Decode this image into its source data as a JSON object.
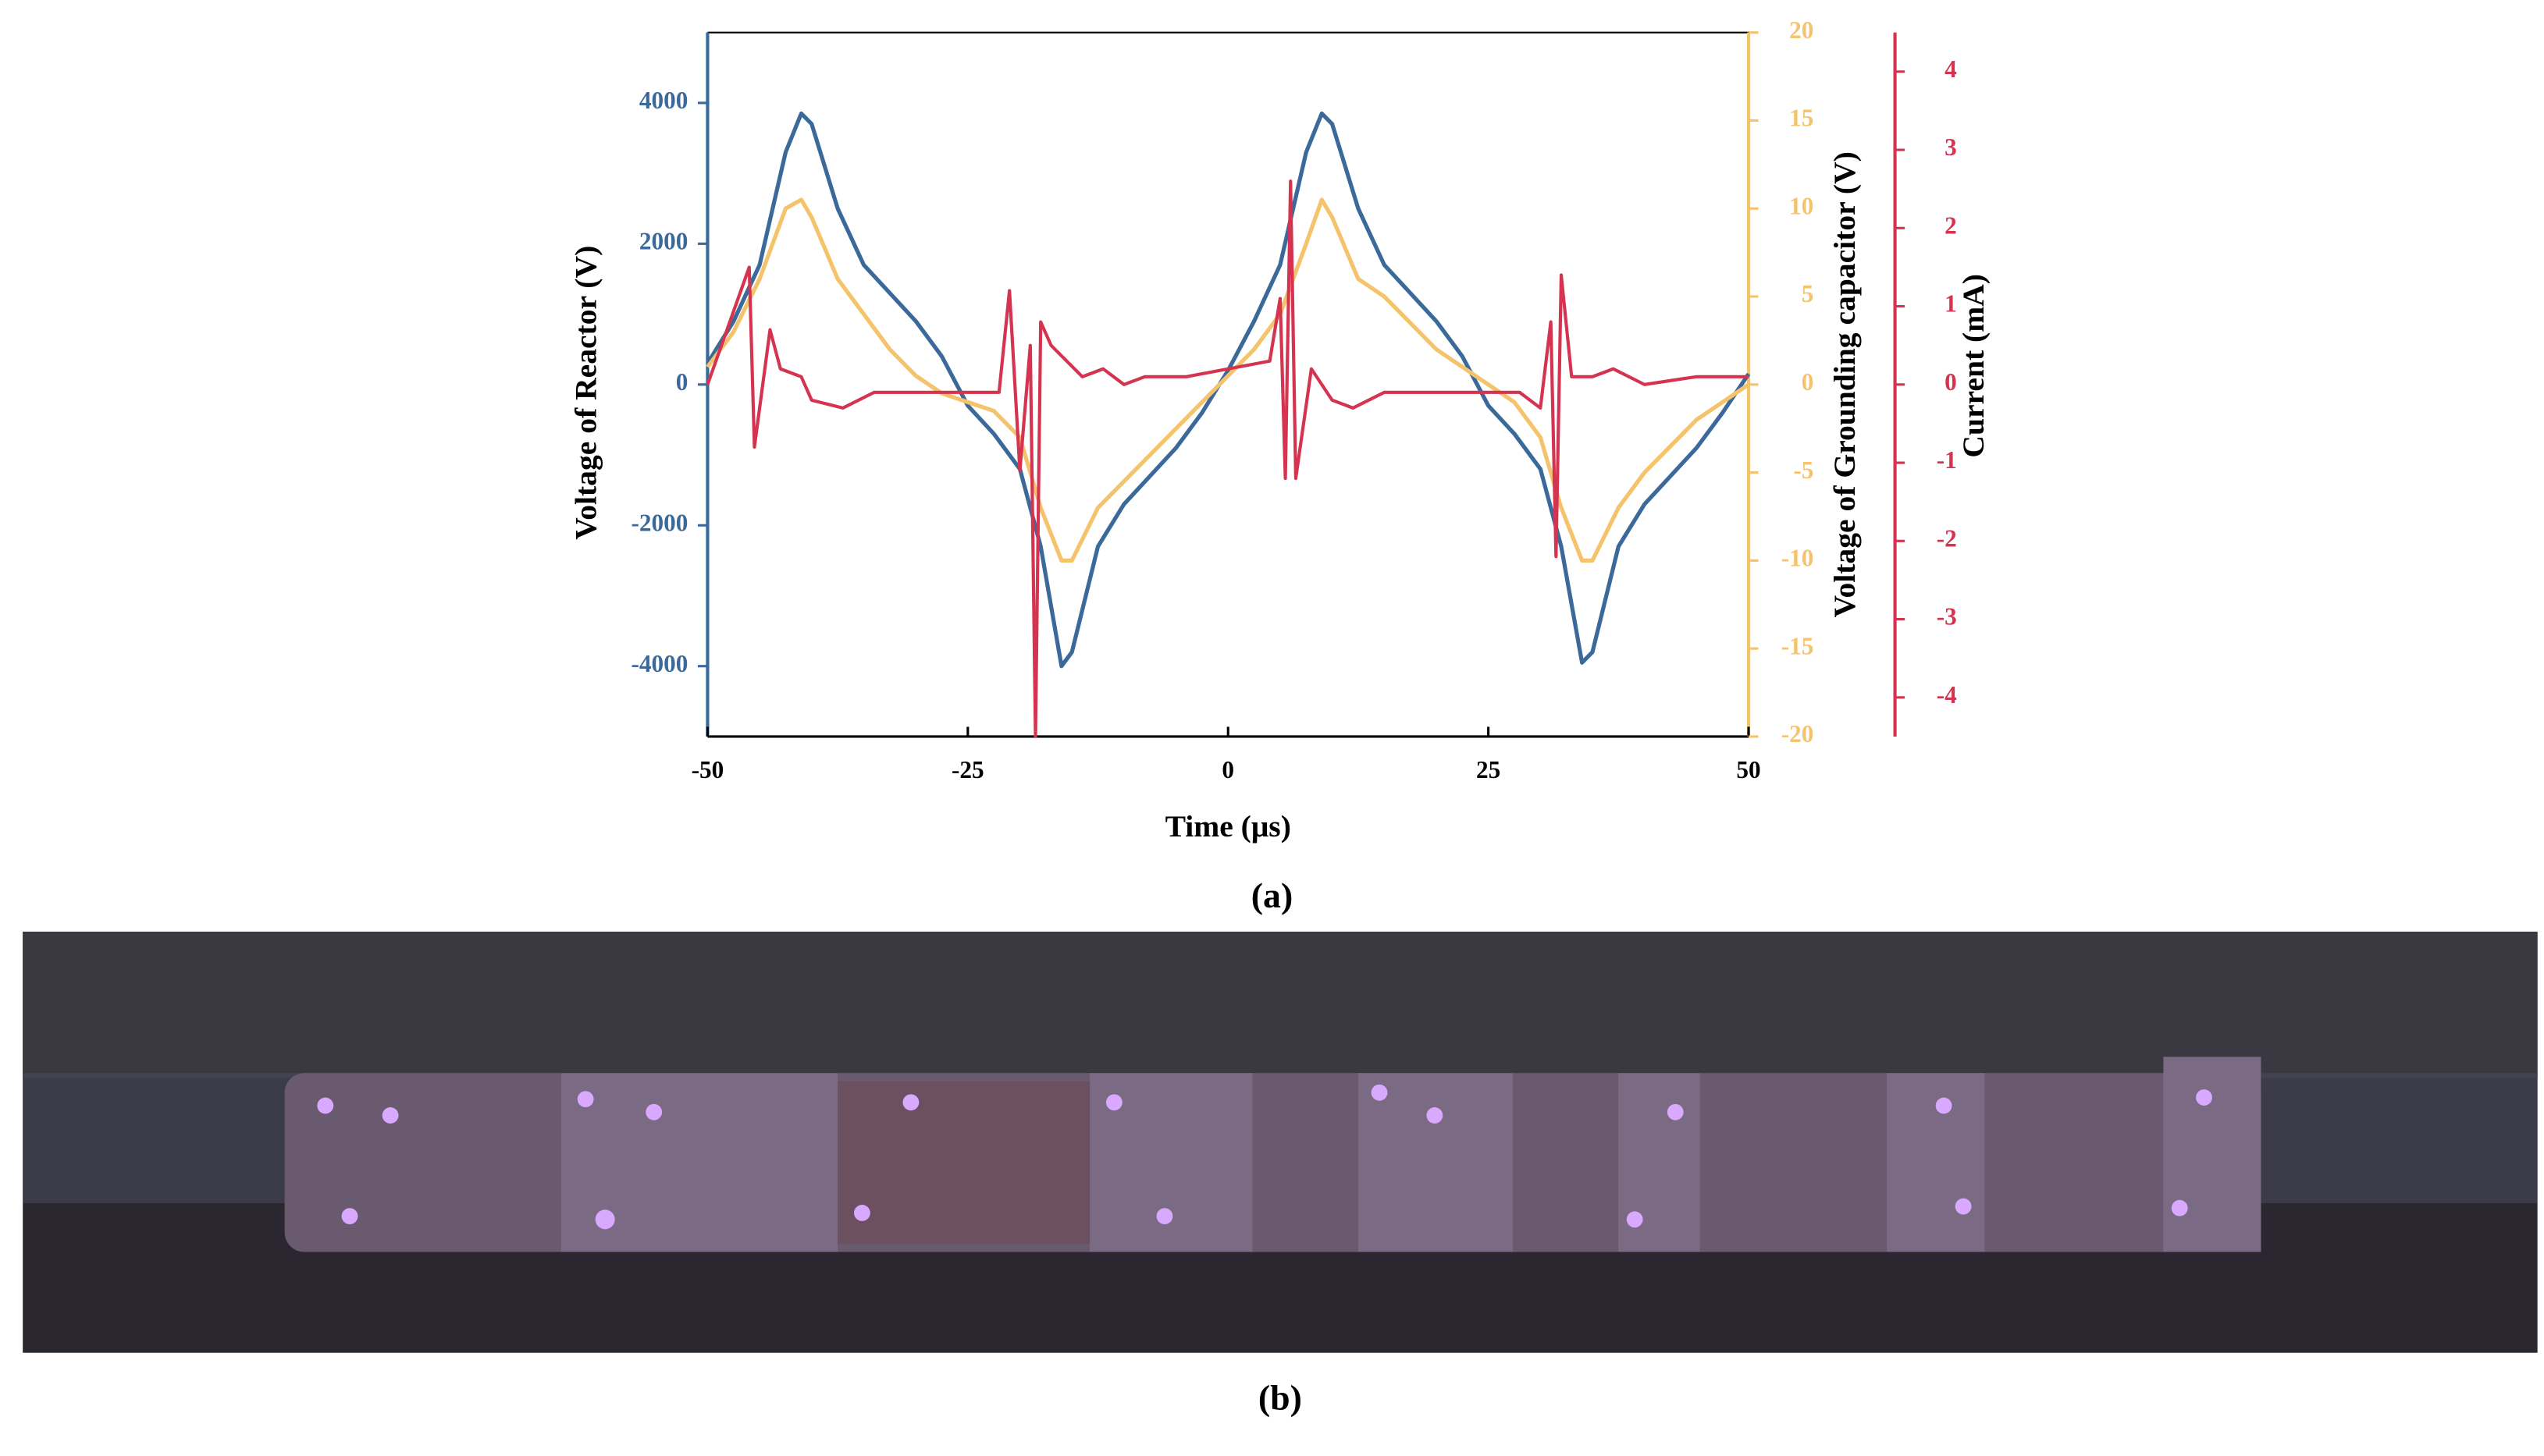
{
  "chart_data": {
    "type": "line",
    "x_label": "Time (μs)",
    "y_label": "Voltage of Reactor (V)",
    "y2_label": "Voltage of Grounding capacitor (V)",
    "y3_label": "Current (mA)",
    "xlim": [
      -50,
      50
    ],
    "xticks": [
      -50,
      -25,
      0,
      25,
      50
    ],
    "ylim": [
      -5000,
      5000
    ],
    "yticks": [
      -4000,
      -2000,
      0,
      2000,
      4000
    ],
    "y2lim": [
      -20,
      20
    ],
    "y2ticks": [
      -20,
      -15,
      -10,
      -5,
      0,
      5,
      10,
      15,
      20
    ],
    "y3lim": [
      -4.5,
      4.5
    ],
    "y3ticks": [
      -4,
      -3,
      -2,
      -1,
      0,
      1,
      2,
      3,
      4
    ],
    "axis_colors": {
      "y": "#3b6a9a",
      "y2": "#f5c36b",
      "y3": "#d4344f"
    },
    "series": [
      {
        "name": "Voltage of Reactor",
        "color": "#3b6a9a",
        "axis": "y",
        "x": [
          -50,
          -47.5,
          -45,
          -42.5,
          -41,
          -40,
          -37.5,
          -35,
          -32.5,
          -30,
          -27.5,
          -25,
          -22.5,
          -20,
          -18,
          -16,
          -15,
          -12.5,
          -10,
          -7.5,
          -5,
          -2.5,
          0,
          2.5,
          5,
          7.5,
          9,
          10,
          12.5,
          15,
          17.5,
          20,
          22.5,
          25,
          27.5,
          30,
          32,
          34,
          35,
          37.5,
          40,
          42.5,
          45,
          47.5,
          50
        ],
        "values": [
          300,
          900,
          1700,
          3300,
          3850,
          3700,
          2500,
          1700,
          1300,
          900,
          400,
          -300,
          -700,
          -1200,
          -2300,
          -4000,
          -3800,
          -2300,
          -1700,
          -1300,
          -900,
          -400,
          200,
          900,
          1700,
          3300,
          3850,
          3700,
          2500,
          1700,
          1300,
          900,
          400,
          -300,
          -700,
          -1200,
          -2300,
          -3950,
          -3800,
          -2300,
          -1700,
          -1300,
          -900,
          -400,
          150
        ]
      },
      {
        "name": "Voltage of Grounding capacitor",
        "color": "#f5c36b",
        "axis": "y2",
        "x": [
          -50,
          -47.5,
          -45,
          -42.5,
          -41,
          -40,
          -37.5,
          -35,
          -32.5,
          -30,
          -27.5,
          -25,
          -22.5,
          -20,
          -18,
          -16,
          -15,
          -12.5,
          -10,
          -7.5,
          -5,
          -2.5,
          0,
          2.5,
          5,
          7.5,
          9,
          10,
          12.5,
          15,
          17.5,
          20,
          22.5,
          25,
          27.5,
          30,
          32,
          34,
          35,
          37.5,
          40,
          42.5,
          45,
          47.5,
          50
        ],
        "values": [
          1,
          3,
          6,
          10,
          10.5,
          9.5,
          6,
          4,
          2,
          0.5,
          -0.5,
          -1,
          -1.5,
          -3,
          -7,
          -10,
          -10,
          -7,
          -5.5,
          -4,
          -2.5,
          -1,
          0.5,
          2,
          4,
          8,
          10.5,
          9.5,
          6,
          5,
          3.5,
          2,
          1,
          0,
          -1,
          -3,
          -7,
          -10,
          -10,
          -7,
          -5,
          -3.5,
          -2,
          -1,
          0
        ]
      },
      {
        "name": "Current",
        "color": "#d4344f",
        "axis": "y3",
        "x": [
          -50,
          -46,
          -45.5,
          -44,
          -43,
          -41,
          -40,
          -37,
          -34,
          -30,
          -22,
          -21,
          -20,
          -19,
          -18.5,
          -18,
          -17,
          -14,
          -12,
          -10,
          -8,
          -4,
          4,
          5,
          5.5,
          6,
          6.5,
          8,
          10,
          12,
          15,
          28,
          30,
          31,
          31.5,
          32,
          33,
          35,
          37,
          40,
          45,
          50
        ],
        "values": [
          0,
          1.5,
          -0.8,
          0.7,
          0.2,
          0.1,
          -0.2,
          -0.3,
          -0.1,
          -0.1,
          -0.1,
          1.2,
          -1.1,
          0.5,
          -4.5,
          0.8,
          0.5,
          0.1,
          0.2,
          0,
          0.1,
          0.1,
          0.3,
          1.1,
          -1.2,
          2.6,
          -1.2,
          0.2,
          -0.2,
          -0.3,
          -0.1,
          -0.1,
          -0.3,
          0.8,
          -2.2,
          1.4,
          0.1,
          0.1,
          0.2,
          0,
          0.1,
          0.1
        ]
      }
    ]
  },
  "captions": [
    "(a)",
    "(b)"
  ]
}
